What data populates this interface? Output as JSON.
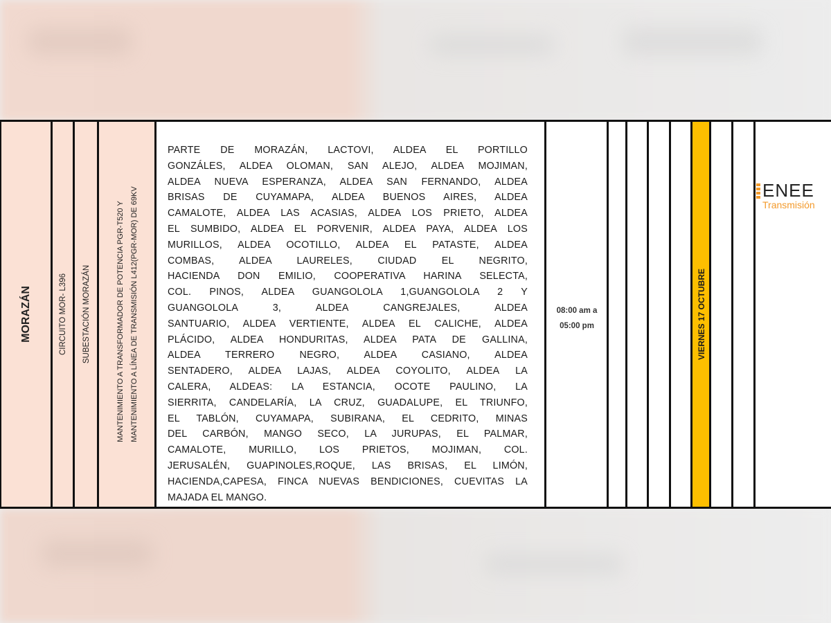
{
  "row": {
    "department": "MORAZÁN",
    "circuit": "CIRCUITO MOR- L396",
    "substation": "SUBESTACIÓN MORAZÁN",
    "work_lines": [
      "MANTENIMIENTO A TRANSFORMADOR DE POTENCIA PGR-T520 Y",
      "MANTENIMIENTO A LÍNEA DE TRANSMISIÓN L412(PGR-MOR) DE 69KV"
    ],
    "affected_areas_lines": [
      "PARTE DE MORAZÁN, LACTOVI, ALDEA EL PORTILLO",
      "GONZÁLES, ALDEA OLOMAN, SAN ALEJO, ALDEA MOJIMAN,",
      "ALDEA NUEVA ESPERANZA, ALDEA SAN FERNANDO, ALDEA",
      "BRISAS DE CUYAMAPA, ALDEA BUENOS AIRES, ALDEA",
      "CAMALOTE, ALDEA LAS ACASIAS, ALDEA LOS PRIETO, ALDEA",
      "EL SUMBIDO, ALDEA EL PORVENIR, ALDEA PAYA, ALDEA LOS",
      "MURILLOS, ALDEA OCOTILLO, ALDEA EL PATASTE, ALDEA",
      "COMBAS, ALDEA LAURELES, CIUDAD EL NEGRITO,",
      "HACIENDA DON EMILIO, COOPERATIVA HARINA SELECTA,",
      "COL. PINOS, ALDEA GUANGOLOLA 1,GUANGOLOLA 2 Y",
      "GUANGOLOLA 3, ALDEA CANGREJALES, ALDEA",
      "SANTUARIO, ALDEA VERTIENTE, ALDEA EL CALICHE, ALDEA",
      "PLÁCIDO, ALDEA HONDURITAS, ALDEA PATA DE GALLINA,",
      "ALDEA TERRERO NEGRO, ALDEA CASIANO, ALDEA",
      "SENTADERO, ALDEA LAJAS, ALDEA COYOLITO, ALDEA LA",
      "CALERA, ALDEAS: LA ESTANCIA, OCOTE PAULINO, LA",
      "SIERRITA, CANDELARÍA, LA CRUZ, GUADALUPE, EL TRIUNFO,",
      "EL TABLÓN, CUYAMAPA, SUBIRANA, EL CEDRITO, MINAS",
      "DEL CARBÓN, MANGO SECO, LA JURUPAS, EL PALMAR,",
      "CAMALOTE, MURILLO, LOS PRIETOS, MOJIMAN, COL.",
      "JERUSALÉN, GUAPINOLES,ROQUE, LAS BRISAS, EL LIMÓN,",
      "HACIENDA,CAPESA, FINCA NUEVAS BENDICIONES, CUEVITAS LA",
      "MAJADA EL MANGO."
    ],
    "time_start": "08:00 am a",
    "time_end": "05:00 pm",
    "day": "VIERNES 17 OCTUBRE"
  },
  "logo": {
    "name": "ENEE",
    "subtitle": "Transmisión"
  },
  "colors": {
    "pink": "#fbe1d5",
    "highlight": "#fdbf00",
    "logo_orange": "#f39a2b"
  }
}
